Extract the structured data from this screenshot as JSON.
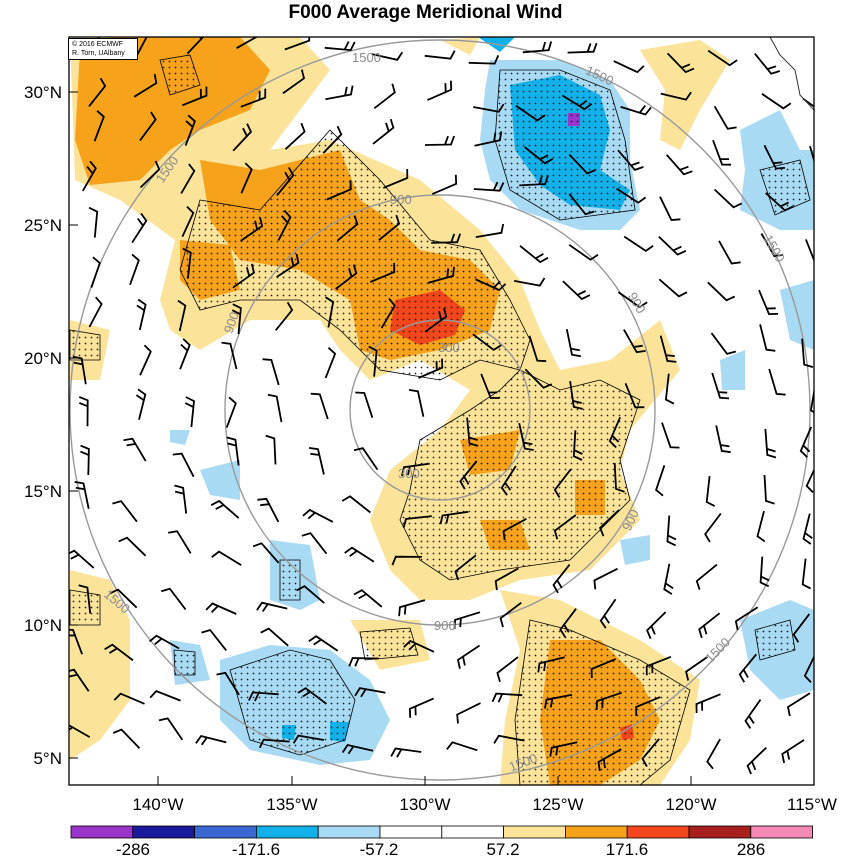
{
  "title": "F000 Average Meridional Wind",
  "copyright": {
    "line1": "© 2016 ECMWF",
    "line2": "R. Torn, UAlbany"
  },
  "axes": {
    "lat_labels": [
      "30°N",
      "25°N",
      "20°N",
      "15°N",
      "10°N",
      "5°N"
    ],
    "lon_labels": [
      "140°W",
      "135°W",
      "130°W",
      "125°W",
      "120°W",
      "115°W"
    ]
  },
  "range_rings": {
    "labels": [
      "300",
      "300",
      "900",
      "900",
      "900",
      "900",
      "900",
      "1500",
      "1500",
      "1500",
      "1500",
      "1500",
      "1500",
      "1500"
    ]
  },
  "colorbar": {
    "colors": [
      "#9a35cc",
      "#1a1a9a",
      "#3a67d1",
      "#12b1ea",
      "#a9daf3",
      "#ffffff",
      "#ffffff",
      "#fbe39a",
      "#f7a21b",
      "#f2461c",
      "#a81f1f",
      "#f58ab7"
    ],
    "tick_labels": [
      "-286",
      "-171.6",
      "-57.2",
      "57.2",
      "171.6",
      "286"
    ]
  },
  "field_colors": {
    "light_blue": "#a9daf3",
    "blue": "#12b1ea",
    "purple": "#9a35cc",
    "light_yellow": "#fbe39a",
    "orange": "#f7a21b",
    "red": "#f2461c"
  }
}
